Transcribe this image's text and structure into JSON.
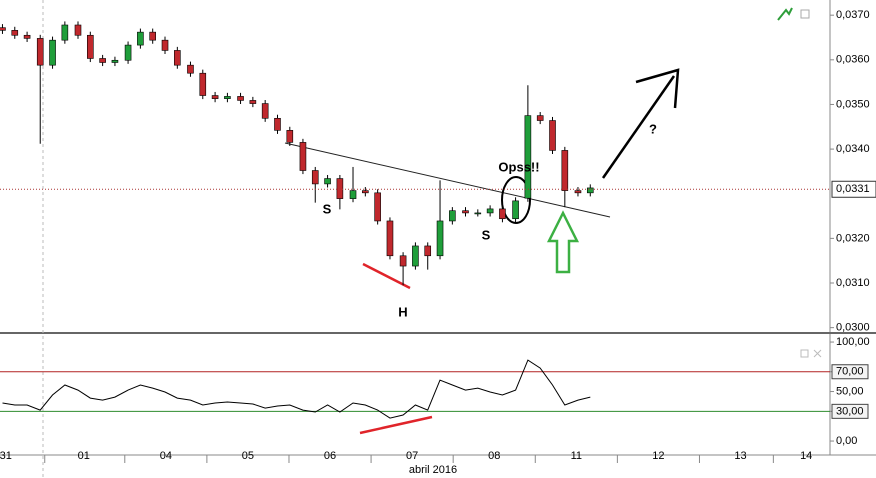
{
  "chart_data": [
    {
      "type": "candlestick",
      "x": [
        -0.49,
        -0.34,
        -0.19,
        -0.03,
        0.12,
        0.27,
        0.43,
        0.58,
        0.73,
        0.88,
        1.04,
        1.19,
        1.34,
        1.49,
        1.64,
        1.8,
        1.95,
        2.1,
        2.25,
        2.41,
        2.56,
        2.71,
        2.86,
        3.01,
        3.17,
        3.32,
        3.47,
        3.62,
        3.78,
        3.93,
        4.08,
        4.23,
        4.39,
        4.54,
        4.69,
        4.84,
        4.99,
        5.15,
        5.3,
        5.45,
        5.6,
        5.76,
        5.91,
        6.06,
        6.21,
        6.36,
        6.52,
        6.67
      ],
      "open": [
        0.03672,
        0.03666,
        0.03655,
        0.03648,
        0.03588,
        0.03644,
        0.03678,
        0.03655,
        0.03603,
        0.03594,
        0.03599,
        0.03633,
        0.03662,
        0.03644,
        0.03621,
        0.03588,
        0.0357,
        0.0352,
        0.03513,
        0.03518,
        0.03509,
        0.03502,
        0.03469,
        0.03442,
        0.03415,
        0.03352,
        0.03322,
        0.03334,
        0.03289,
        0.03307,
        0.03302,
        0.03239,
        0.03161,
        0.03138,
        0.03183,
        0.03161,
        0.03239,
        0.03262,
        0.03257,
        0.03257,
        0.03266,
        0.03244,
        0.0329,
        0.03475,
        0.03464,
        0.03397,
        0.03307,
        0.03302
      ],
      "high": [
        0.0368,
        0.03674,
        0.03663,
        0.03656,
        0.03652,
        0.03686,
        0.03686,
        0.03663,
        0.03611,
        0.03607,
        0.03641,
        0.0367,
        0.0367,
        0.03652,
        0.03629,
        0.03596,
        0.03578,
        0.03528,
        0.03526,
        0.03526,
        0.03517,
        0.0351,
        0.03477,
        0.0345,
        0.03423,
        0.0336,
        0.03342,
        0.03342,
        0.0336,
        0.03315,
        0.0331,
        0.03247,
        0.03169,
        0.03191,
        0.03191,
        0.0333,
        0.0327,
        0.0327,
        0.03265,
        0.03274,
        0.03274,
        0.03292,
        0.03543,
        0.03483,
        0.03472,
        0.03405,
        0.03315,
        0.03321
      ],
      "low": [
        0.03658,
        0.03647,
        0.0364,
        0.03412,
        0.0358,
        0.03636,
        0.03647,
        0.03595,
        0.03586,
        0.03586,
        0.03591,
        0.03625,
        0.03636,
        0.03613,
        0.0358,
        0.03562,
        0.03512,
        0.03505,
        0.03505,
        0.03501,
        0.03494,
        0.03461,
        0.03434,
        0.03407,
        0.03344,
        0.0328,
        0.03314,
        0.03265,
        0.03281,
        0.03294,
        0.03231,
        0.03153,
        0.03095,
        0.0313,
        0.0313,
        0.03153,
        0.03231,
        0.03249,
        0.03249,
        0.03249,
        0.03236,
        0.03236,
        0.03282,
        0.03456,
        0.03389,
        0.0327,
        0.03294,
        0.03294
      ],
      "close": [
        0.03666,
        0.03655,
        0.03648,
        0.03588,
        0.03644,
        0.03678,
        0.03655,
        0.03603,
        0.03594,
        0.03599,
        0.03633,
        0.03662,
        0.03644,
        0.03621,
        0.03588,
        0.0357,
        0.0352,
        0.03513,
        0.03518,
        0.03509,
        0.03502,
        0.03469,
        0.03442,
        0.03415,
        0.03352,
        0.03322,
        0.03334,
        0.03289,
        0.03307,
        0.03302,
        0.03239,
        0.03161,
        0.03138,
        0.03183,
        0.03161,
        0.03239,
        0.03262,
        0.03257,
        0.03257,
        0.03266,
        0.03244,
        0.03284,
        0.03475,
        0.03464,
        0.03397,
        0.03307,
        0.03302,
        0.03313
      ],
      "up_color": "#1f9e3a",
      "down_color": "#c0282d",
      "xlim": [
        -0.52,
        9.59
      ],
      "ylim": [
        0.02988,
        0.03734
      ],
      "yticks": [
        {
          "value": 0.037,
          "label": "0,0370"
        },
        {
          "value": 0.036,
          "label": "0,0360"
        },
        {
          "value": 0.035,
          "label": "0,0350"
        },
        {
          "value": 0.034,
          "label": "0,0340"
        },
        {
          "value": 0.032,
          "label": "0,0320"
        },
        {
          "value": 0.031,
          "label": "0,0310"
        },
        {
          "value": 0.03,
          "label": "0,0300"
        }
      ],
      "last_price": {
        "value": 0.0331,
        "label": "0,0331"
      },
      "annotations": [
        "S",
        "H",
        "S",
        "Opss!!",
        "?"
      ]
    },
    {
      "type": "line",
      "x": [
        -0.49,
        -0.34,
        -0.19,
        -0.03,
        0.12,
        0.27,
        0.43,
        0.58,
        0.73,
        0.88,
        1.04,
        1.19,
        1.34,
        1.49,
        1.64,
        1.8,
        1.95,
        2.1,
        2.25,
        2.41,
        2.56,
        2.71,
        2.86,
        3.01,
        3.17,
        3.32,
        3.47,
        3.62,
        3.78,
        3.93,
        4.08,
        4.23,
        4.39,
        4.54,
        4.69,
        4.84,
        4.99,
        5.15,
        5.3,
        5.45,
        5.6,
        5.76,
        5.91,
        6.06,
        6.21,
        6.36,
        6.52,
        6.67
      ],
      "values": [
        38.4,
        36.4,
        36.4,
        31.3,
        46.5,
        56.6,
        51.5,
        43.4,
        41.4,
        44.4,
        51.5,
        56.6,
        53.5,
        49.5,
        43.4,
        41.4,
        36.4,
        38.4,
        39.4,
        38.4,
        37.4,
        33.3,
        35.4,
        36.4,
        31.3,
        29.3,
        36.4,
        29.3,
        38.4,
        36.4,
        31.3,
        23.2,
        26.3,
        36.4,
        31.3,
        61.6,
        56.6,
        51.5,
        53.5,
        49.5,
        46.5,
        51.5,
        81.8,
        73.7,
        56.6,
        36.4,
        41.4,
        44.4
      ],
      "color": "#000000",
      "xlim": [
        -0.52,
        9.59
      ],
      "ylim": [
        -14.1,
        105.1
      ],
      "yticks": [
        {
          "value": 100,
          "label": "100,00"
        },
        {
          "value": 70,
          "label": "70,00"
        },
        {
          "value": 50,
          "label": "50,00"
        },
        {
          "value": 30,
          "label": "30,00"
        },
        {
          "value": 0,
          "label": "0,00"
        }
      ],
      "levels": [
        {
          "value": 70,
          "color": "#b22222"
        },
        {
          "value": 30,
          "color": "#2e8b2e"
        }
      ],
      "xticks": [
        {
          "value": -0.45,
          "label": "31"
        },
        {
          "value": 0.5,
          "label": "01"
        },
        {
          "value": 1.5,
          "label": "04"
        },
        {
          "value": 2.5,
          "label": "05"
        },
        {
          "value": 3.5,
          "label": "06"
        },
        {
          "value": 4.5,
          "label": "07"
        },
        {
          "value": 5.5,
          "label": "08"
        },
        {
          "value": 6.5,
          "label": "11"
        },
        {
          "value": 7.5,
          "label": "12"
        },
        {
          "value": 8.5,
          "label": "13"
        },
        {
          "value": 9.3,
          "label": "14"
        }
      ],
      "xlabel": "abril 2016"
    }
  ]
}
